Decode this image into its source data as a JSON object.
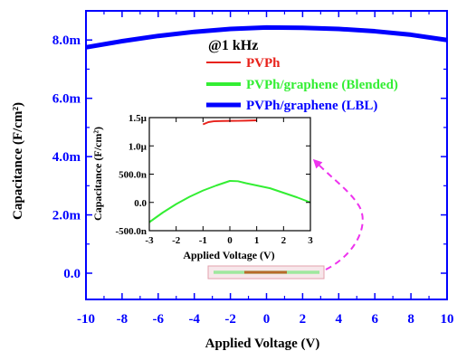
{
  "chart_data": [
    {
      "type": "line",
      "title": "",
      "xlabel": "Applied Voltage (V)",
      "ylabel": "Capacitance (F/cm²)",
      "xlim": [
        -10,
        10
      ],
      "ylim": [
        -0.9,
        9.0
      ],
      "y_unit_scale": "m",
      "xticks": [
        "-10",
        "-8",
        "-6",
        "-4",
        "-2",
        "0",
        "2",
        "4",
        "6",
        "8",
        "10"
      ],
      "yticks": [
        "0.0",
        "2.0m",
        "4.0m",
        "6.0m",
        "8.0m"
      ],
      "axis_color": "#0000ff",
      "annotation": "@1 kHz",
      "legend": [
        {
          "label": "PVPh",
          "color": "#e8221b"
        },
        {
          "label": "PVPh/graphene (Blended)",
          "color": "#33ee33"
        },
        {
          "label": "PVPh/graphene (LBL)",
          "color": "#0000ff"
        }
      ],
      "series": [
        {
          "name": "PVPh/graphene (LBL)",
          "color": "#0000ff",
          "x": [
            -10,
            -8,
            -6,
            -4,
            -2,
            0,
            2,
            4,
            6,
            8,
            10
          ],
          "y": [
            7.75,
            7.96,
            8.14,
            8.28,
            8.38,
            8.43,
            8.42,
            8.38,
            8.3,
            8.18,
            8.0
          ]
        }
      ]
    },
    {
      "type": "line",
      "title": "",
      "xlabel": "Applied Voltage (V)",
      "ylabel": "Capacitance (F/cm²)",
      "xlim": [
        -3,
        3
      ],
      "ylim": [
        -500,
        1500
      ],
      "y_unit_scale": "n",
      "xticks": [
        "-3",
        "-2",
        "-1",
        "0",
        "1",
        "2",
        "3"
      ],
      "yticks": [
        "-500.0n",
        "0.0",
        "500.0n",
        "1.0µ",
        "1.5µ"
      ],
      "series": [
        {
          "name": "PVPh",
          "color": "#e8221b",
          "x": [
            -1.0,
            -0.8,
            -0.6,
            -0.3,
            0.0,
            0.3,
            0.6,
            1.0
          ],
          "y": [
            1380,
            1420,
            1435,
            1440,
            1442,
            1443,
            1446,
            1452
          ]
        },
        {
          "name": "PVPh/graphene (Blended)",
          "color": "#33ee33",
          "x": [
            -3.0,
            -2.5,
            -2.0,
            -1.5,
            -1.0,
            -0.5,
            0.0,
            0.3,
            0.6,
            1.0,
            1.5,
            2.0,
            2.5,
            3.0
          ],
          "y": [
            -350,
            -180,
            -30,
            100,
            210,
            300,
            380,
            375,
            340,
            300,
            250,
            170,
            90,
            0
          ]
        }
      ]
    }
  ]
}
